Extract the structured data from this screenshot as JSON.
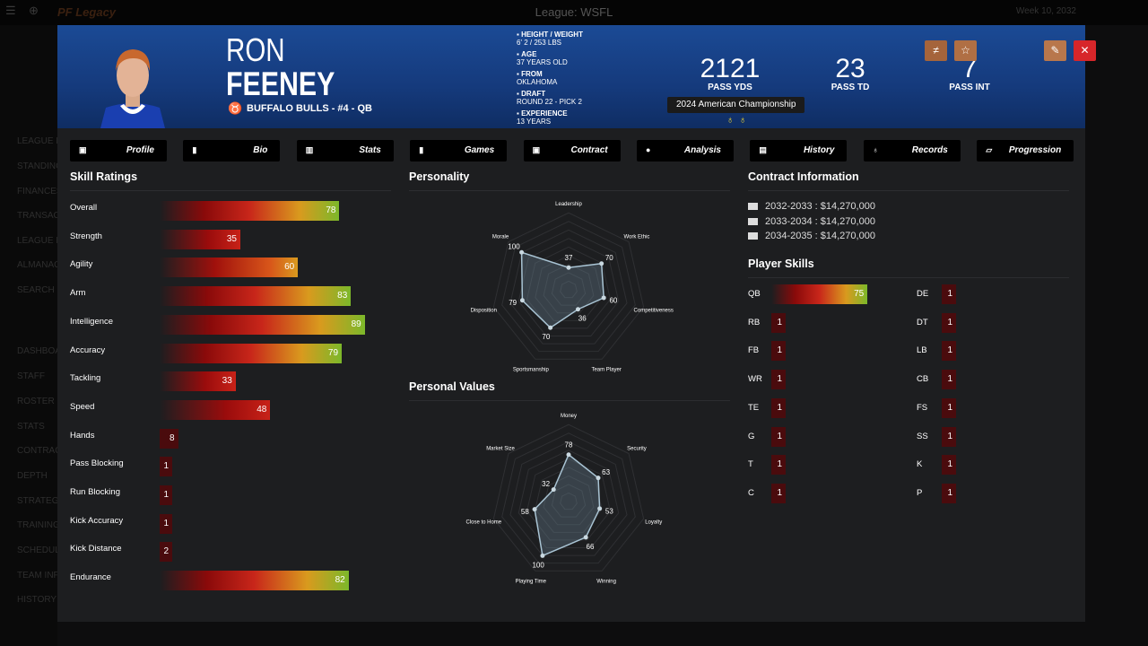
{
  "app": {
    "league_title": "League: WSFL",
    "week": "Week 10, 2032",
    "logo": "PF Legacy"
  },
  "sidebar": [
    "LEAGUE M",
    "STANDINGS",
    "FINANCES",
    "TRANSACT",
    "LEAGUE L",
    "ALMANAC",
    "SEARCH",
    "DASHBOA",
    "STAFF",
    "ROSTER",
    "STATS",
    "CONTRAC",
    "DEPTH",
    "STRATEGY",
    "TRAINING",
    "SCHEDUL",
    "TEAM INF",
    "HISTORY"
  ],
  "player": {
    "first": "RON",
    "last": "FEENEY",
    "team_line": "BUFFALO BULLS - #4 - QB",
    "info": [
      {
        "k": "HEIGHT / WEIGHT",
        "v": "6' 2 / 253 LBS",
        "icon": "ruler-icon"
      },
      {
        "k": "AGE",
        "v": "37 YEARS OLD",
        "icon": "cake-icon"
      },
      {
        "k": "FROM",
        "v": "OKLAHOMA",
        "icon": "home-icon"
      },
      {
        "k": "DRAFT",
        "v": "ROUND 22 - PICK 2",
        "icon": "hash-icon"
      },
      {
        "k": "EXPERIENCE",
        "v": "13 YEARS",
        "icon": "user-icon"
      }
    ],
    "stats": [
      {
        "v": "2121",
        "l": "PASS YDS"
      },
      {
        "v": "23",
        "l": "PASS TD"
      },
      {
        "v": "7",
        "l": "PASS INT"
      }
    ],
    "tooltip": "2024 American Championship"
  },
  "header_buttons": [
    {
      "name": "compare-button",
      "glyph": "≠",
      "color": "#a5643b"
    },
    {
      "name": "favorite-button",
      "glyph": "☆",
      "color": "#b06f44"
    },
    {
      "name": "edit-button",
      "glyph": "✎",
      "color": "#b8774c"
    },
    {
      "name": "close-button",
      "glyph": "✕",
      "color": "#d7262a"
    }
  ],
  "tabs": [
    {
      "label": "Profile",
      "icon": "▣"
    },
    {
      "label": "Bio",
      "icon": "▮"
    },
    {
      "label": "Stats",
      "icon": "▥"
    },
    {
      "label": "Games",
      "icon": "▮"
    },
    {
      "label": "Contract",
      "icon": "▣"
    },
    {
      "label": "Analysis",
      "icon": "●"
    },
    {
      "label": "History",
      "icon": "▤"
    },
    {
      "label": "Records",
      "icon": "♁"
    },
    {
      "label": "Progression",
      "icon": "▱"
    }
  ],
  "skill_ratings": {
    "title": "Skill Ratings",
    "items": [
      {
        "l": "Overall",
        "v": 78
      },
      {
        "l": "Strength",
        "v": 35
      },
      {
        "l": "Agility",
        "v": 60
      },
      {
        "l": "Arm",
        "v": 83
      },
      {
        "l": "Intelligence",
        "v": 89
      },
      {
        "l": "Accuracy",
        "v": 79
      },
      {
        "l": "Tackling",
        "v": 33
      },
      {
        "l": "Speed",
        "v": 48
      },
      {
        "l": "Hands",
        "v": 8
      },
      {
        "l": "Pass Blocking",
        "v": 1
      },
      {
        "l": "Run Blocking",
        "v": 1
      },
      {
        "l": "Kick Accuracy",
        "v": 1
      },
      {
        "l": "Kick Distance",
        "v": 2
      },
      {
        "l": "Endurance",
        "v": 82
      }
    ]
  },
  "personality": {
    "title": "Personality",
    "axes": [
      "Leadership",
      "Work Ethic",
      "Competitiveness",
      "Team Player",
      "Sportsmanship",
      "Disposition",
      "Morale"
    ],
    "values": [
      37,
      70,
      60,
      36,
      70,
      79,
      100
    ],
    "max": 100
  },
  "personal_values": {
    "title": "Personal Values",
    "axes": [
      "Money",
      "Security",
      "Loyalty",
      "Winning",
      "Playing Time",
      "Close to Home",
      "Market Size"
    ],
    "values": [
      78,
      63,
      53,
      66,
      100,
      58,
      32
    ],
    "max": 100
  },
  "contract": {
    "title": "Contract Information",
    "rows": [
      "2032-2033 : $14,270,000",
      "2033-2034 : $14,270,000",
      "2034-2035 : $14,270,000"
    ]
  },
  "player_skills": {
    "title": "Player Skills",
    "left": [
      {
        "l": "QB",
        "v": 75
      },
      {
        "l": "RB",
        "v": 1
      },
      {
        "l": "FB",
        "v": 1
      },
      {
        "l": "WR",
        "v": 1
      },
      {
        "l": "TE",
        "v": 1
      },
      {
        "l": "G",
        "v": 1
      },
      {
        "l": "T",
        "v": 1
      },
      {
        "l": "C",
        "v": 1
      }
    ],
    "right": [
      {
        "l": "DE",
        "v": 1
      },
      {
        "l": "DT",
        "v": 1
      },
      {
        "l": "LB",
        "v": 1
      },
      {
        "l": "CB",
        "v": 1
      },
      {
        "l": "FS",
        "v": 1
      },
      {
        "l": "SS",
        "v": 1
      },
      {
        "l": "K",
        "v": 1
      },
      {
        "l": "P",
        "v": 1
      }
    ]
  }
}
